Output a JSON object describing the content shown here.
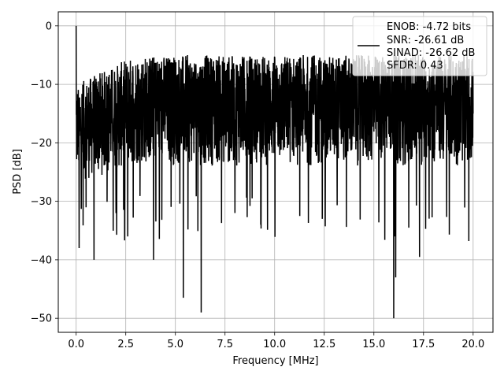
{
  "chart_data": {
    "type": "line",
    "title": "",
    "xlabel": "Frequency [MHz]",
    "ylabel": "PSD [dB]",
    "xlim": [
      -0.9,
      21.0
    ],
    "ylim": [
      -52.4,
      2.4
    ],
    "xticks": [
      0.0,
      2.5,
      5.0,
      7.5,
      10.0,
      12.5,
      15.0,
      17.5,
      20.0
    ],
    "xtick_labels": [
      "0.0",
      "2.5",
      "5.0",
      "7.5",
      "10.0",
      "12.5",
      "15.0",
      "17.5",
      "20.0"
    ],
    "yticks": [
      0,
      -10,
      -20,
      -30,
      -40,
      -50
    ],
    "ytick_labels": [
      "0",
      "−10",
      "−20",
      "−30",
      "−40",
      "−50"
    ],
    "grid": true,
    "legend_placement": "upper-right",
    "series": [
      {
        "color": "#000000",
        "legend_lines": [
          "ENOB: -4.72 bits",
          "SNR: -26.61 dB",
          "SINAD: -26.62 dB",
          "SFDR: 0.43"
        ],
        "x_range": [
          0.0,
          20.0
        ],
        "noise_floor_estimate": {
          "upper_envelope_db": -5,
          "lower_envelope_db": -25
        },
        "key_points": [
          {
            "x": 0.0,
            "y": 0.0
          },
          {
            "x": 0.08,
            "y": -12
          },
          {
            "x": 0.15,
            "y": -38
          },
          {
            "x": 0.9,
            "y": -40
          },
          {
            "x": 2.6,
            "y": -36
          },
          {
            "x": 3.9,
            "y": -40
          },
          {
            "x": 5.4,
            "y": -46.5
          },
          {
            "x": 6.3,
            "y": -49
          },
          {
            "x": 8.0,
            "y": -32
          },
          {
            "x": 9.3,
            "y": -34
          },
          {
            "x": 12.4,
            "y": -33
          },
          {
            "x": 16.0,
            "y": -50
          },
          {
            "x": 16.1,
            "y": -43
          },
          {
            "x": 17.3,
            "y": -39.5
          },
          {
            "x": 20.0,
            "y": -15
          }
        ]
      }
    ]
  }
}
